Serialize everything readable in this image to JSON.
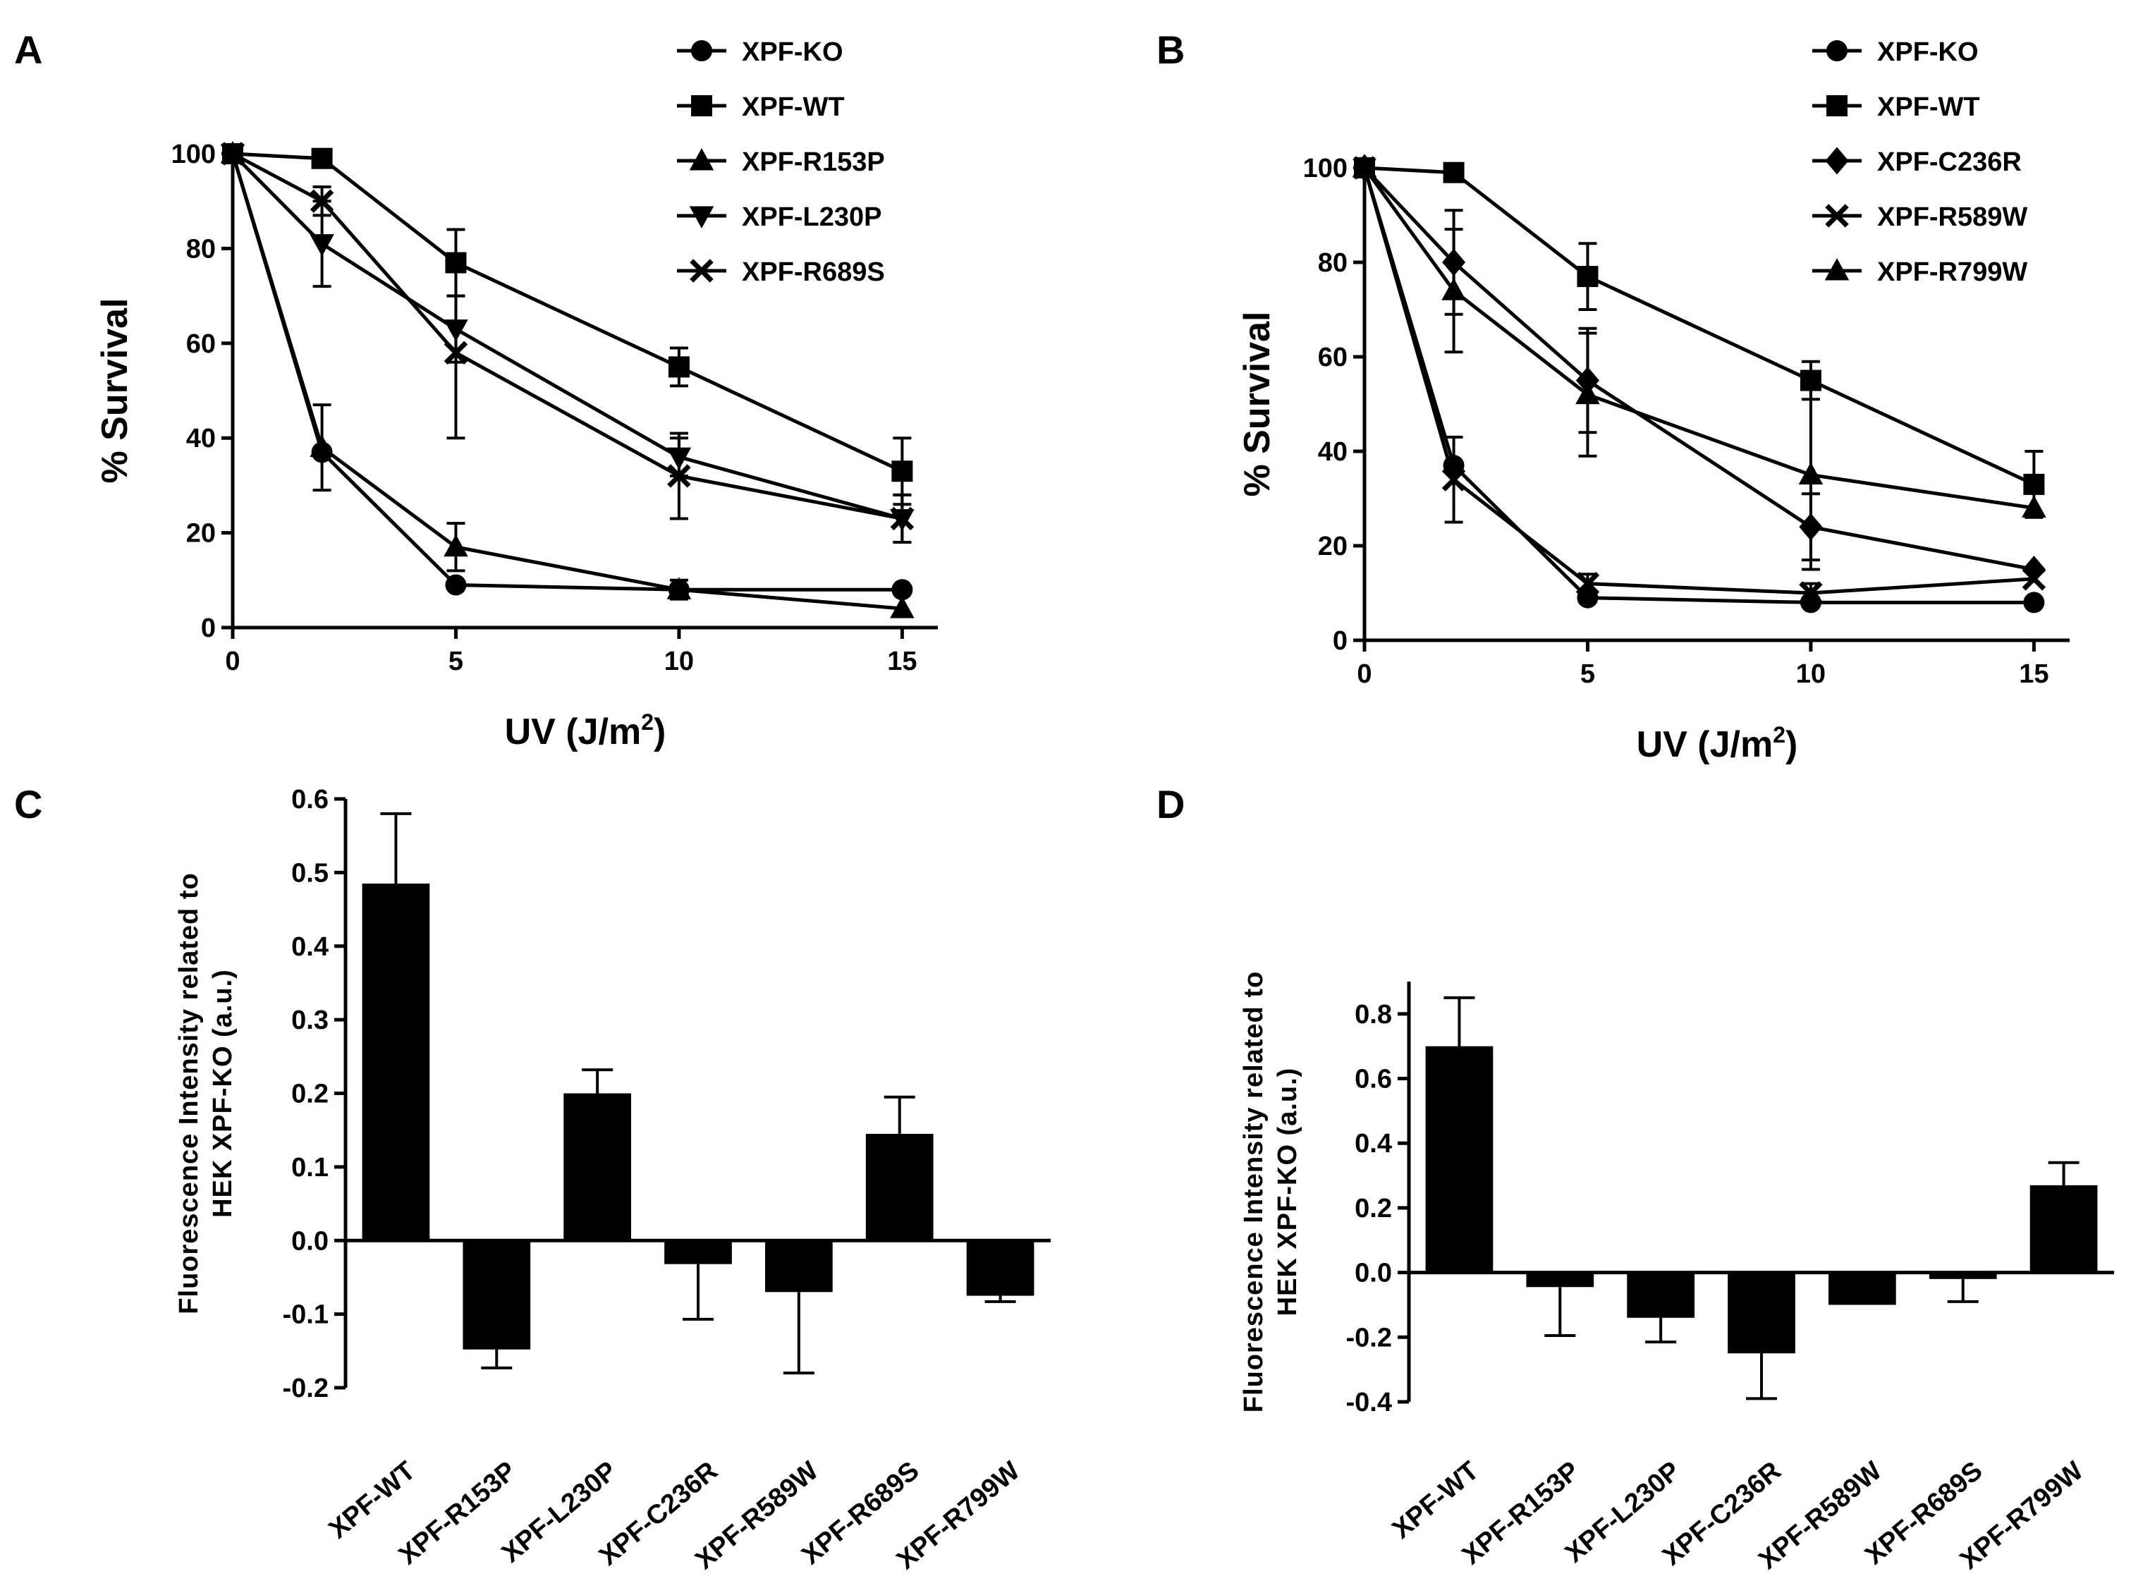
{
  "panels": {
    "a": {
      "letter": "A"
    },
    "b": {
      "letter": "B"
    },
    "c": {
      "letter": "C"
    },
    "d": {
      "letter": "D"
    }
  },
  "chart_data": [
    {
      "panel": "A",
      "type": "line",
      "xlabel": "UV (J/m",
      "xlabel_sup": "2",
      "xlabel_tail": ")",
      "ylabel": "% Survival",
      "xlim": [
        0,
        15.8
      ],
      "ylim": [
        0,
        100
      ],
      "xticks": [
        0,
        5,
        10,
        15
      ],
      "yticks": [
        0,
        20,
        40,
        60,
        80,
        100
      ],
      "legend_position": "top-right",
      "series": [
        {
          "name": "XPF-KO",
          "marker": "circle",
          "x": [
            0,
            2,
            5,
            10,
            15
          ],
          "y": [
            100,
            37,
            9,
            8,
            8
          ],
          "err": [
            0,
            0,
            0,
            0,
            0
          ]
        },
        {
          "name": "XPF-WT",
          "marker": "square",
          "x": [
            0,
            2,
            5,
            10,
            15
          ],
          "y": [
            100,
            99,
            77,
            55,
            33
          ],
          "err": [
            0,
            0,
            7,
            4,
            7
          ]
        },
        {
          "name": "XPF-R153P",
          "marker": "triangle-up",
          "x": [
            0,
            2,
            5,
            10,
            15
          ],
          "y": [
            100,
            38,
            17,
            8,
            4
          ],
          "err": [
            0,
            9,
            5,
            2,
            0
          ]
        },
        {
          "name": "XPF-L230P",
          "marker": "triangle-down",
          "x": [
            0,
            2,
            5,
            10,
            15
          ],
          "y": [
            100,
            81,
            63,
            36,
            23
          ],
          "err": [
            0,
            9,
            7,
            4,
            5
          ]
        },
        {
          "name": "XPF-R689S",
          "marker": "x",
          "x": [
            0,
            2,
            5,
            10,
            15
          ],
          "y": [
            100,
            90,
            58,
            32,
            23
          ],
          "err": [
            0,
            3,
            18,
            9,
            5
          ]
        }
      ]
    },
    {
      "panel": "B",
      "type": "line",
      "xlabel": "UV (J/m",
      "xlabel_sup": "2",
      "xlabel_tail": ")",
      "ylabel": "% Survival",
      "xlim": [
        0,
        15.8
      ],
      "ylim": [
        0,
        100
      ],
      "xticks": [
        0,
        5,
        10,
        15
      ],
      "yticks": [
        0,
        20,
        40,
        60,
        80,
        100
      ],
      "legend_position": "top-right",
      "series": [
        {
          "name": "XPF-KO",
          "marker": "circle",
          "x": [
            0,
            2,
            5,
            10,
            15
          ],
          "y": [
            100,
            37,
            9,
            8,
            8
          ],
          "err": [
            0,
            0,
            0,
            0,
            0
          ]
        },
        {
          "name": "XPF-WT",
          "marker": "square",
          "x": [
            0,
            2,
            5,
            10,
            15
          ],
          "y": [
            100,
            99,
            77,
            55,
            33
          ],
          "err": [
            0,
            0,
            7,
            4,
            7
          ]
        },
        {
          "name": "XPF-C236R",
          "marker": "diamond",
          "x": [
            0,
            2,
            5,
            10,
            15
          ],
          "y": [
            100,
            80,
            55,
            24,
            15
          ],
          "err": [
            0,
            11,
            11,
            7,
            0
          ]
        },
        {
          "name": "XPF-R589W",
          "marker": "x",
          "x": [
            0,
            2,
            5,
            10,
            15
          ],
          "y": [
            100,
            34,
            12,
            10,
            13
          ],
          "err": [
            0,
            9,
            2,
            2,
            0
          ]
        },
        {
          "name": "XPF-R799W",
          "marker": "triangle-up",
          "x": [
            0,
            2,
            5,
            10,
            15
          ],
          "y": [
            100,
            74,
            52,
            35,
            28
          ],
          "err": [
            0,
            13,
            13,
            20,
            0
          ]
        }
      ]
    },
    {
      "panel": "C",
      "type": "bar",
      "ylabel_lines": [
        "Fluorescence Intensity related to",
        "HEK XPF-KO (a.u.)"
      ],
      "categories": [
        "XPF-WT",
        "XPF-R153P",
        "XPF-L230P",
        "XPF-C236R",
        "XPF-R589W",
        "XPF-R689S",
        "XPF-R799W"
      ],
      "values": [
        0.485,
        -0.148,
        0.2,
        -0.032,
        -0.07,
        0.145,
        -0.075
      ],
      "errors": [
        0.095,
        0.025,
        0.032,
        0.075,
        0.11,
        0.05,
        0.008
      ],
      "ylim": [
        -0.2,
        0.6
      ],
      "yticks": [
        -0.2,
        -0.1,
        0.0,
        0.1,
        0.2,
        0.3,
        0.4,
        0.5,
        0.6
      ],
      "ytick_labels": [
        "-0.2",
        "-0.1",
        "0.0",
        "0.1",
        "0.2",
        "0.3",
        "0.4",
        "0.5",
        "0.6"
      ]
    },
    {
      "panel": "D",
      "type": "bar",
      "ylabel_lines": [
        "Fluorescence Intensity related to",
        "HEK XPF-KO (a.u.)"
      ],
      "categories": [
        "XPF-WT",
        "XPF-R153P",
        "XPF-L230P",
        "XPF-C236R",
        "XPF-R589W",
        "XPF-R689S",
        "XPF-R799W"
      ],
      "values": [
        0.7,
        -0.045,
        -0.14,
        -0.25,
        -0.1,
        -0.02,
        0.27
      ],
      "errors": [
        0.15,
        0.15,
        0.075,
        0.14,
        0.0,
        0.07,
        0.07
      ],
      "ylim": [
        -0.4,
        0.9
      ],
      "yticks": [
        -0.4,
        -0.2,
        0.0,
        0.2,
        0.4,
        0.6,
        0.8
      ],
      "ytick_labels": [
        "-0.4",
        "-0.2",
        "0.0",
        "0.2",
        "0.4",
        "0.6",
        "0.8"
      ]
    }
  ]
}
